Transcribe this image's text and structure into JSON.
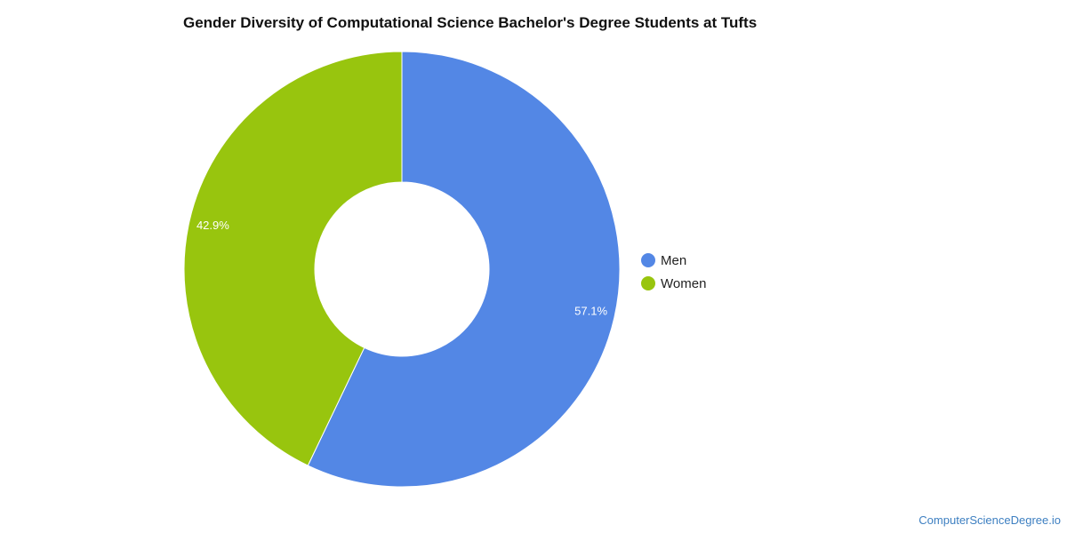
{
  "chart_data": {
    "type": "pie",
    "title": "Gender Diversity of Computational Science Bachelor's Degree Students at Tufts",
    "donut": true,
    "categories": [
      "Men",
      "Women"
    ],
    "values": [
      57.1,
      42.9
    ],
    "labels": [
      "57.1%",
      "42.9%"
    ],
    "colors": [
      "#5387e5",
      "#98c50e"
    ],
    "legend": {
      "position": "right",
      "items": [
        {
          "label": "Men",
          "color": "#5387e5"
        },
        {
          "label": "Women",
          "color": "#98c50e"
        }
      ]
    }
  },
  "footer": {
    "source": "ComputerScienceDegree.io"
  }
}
